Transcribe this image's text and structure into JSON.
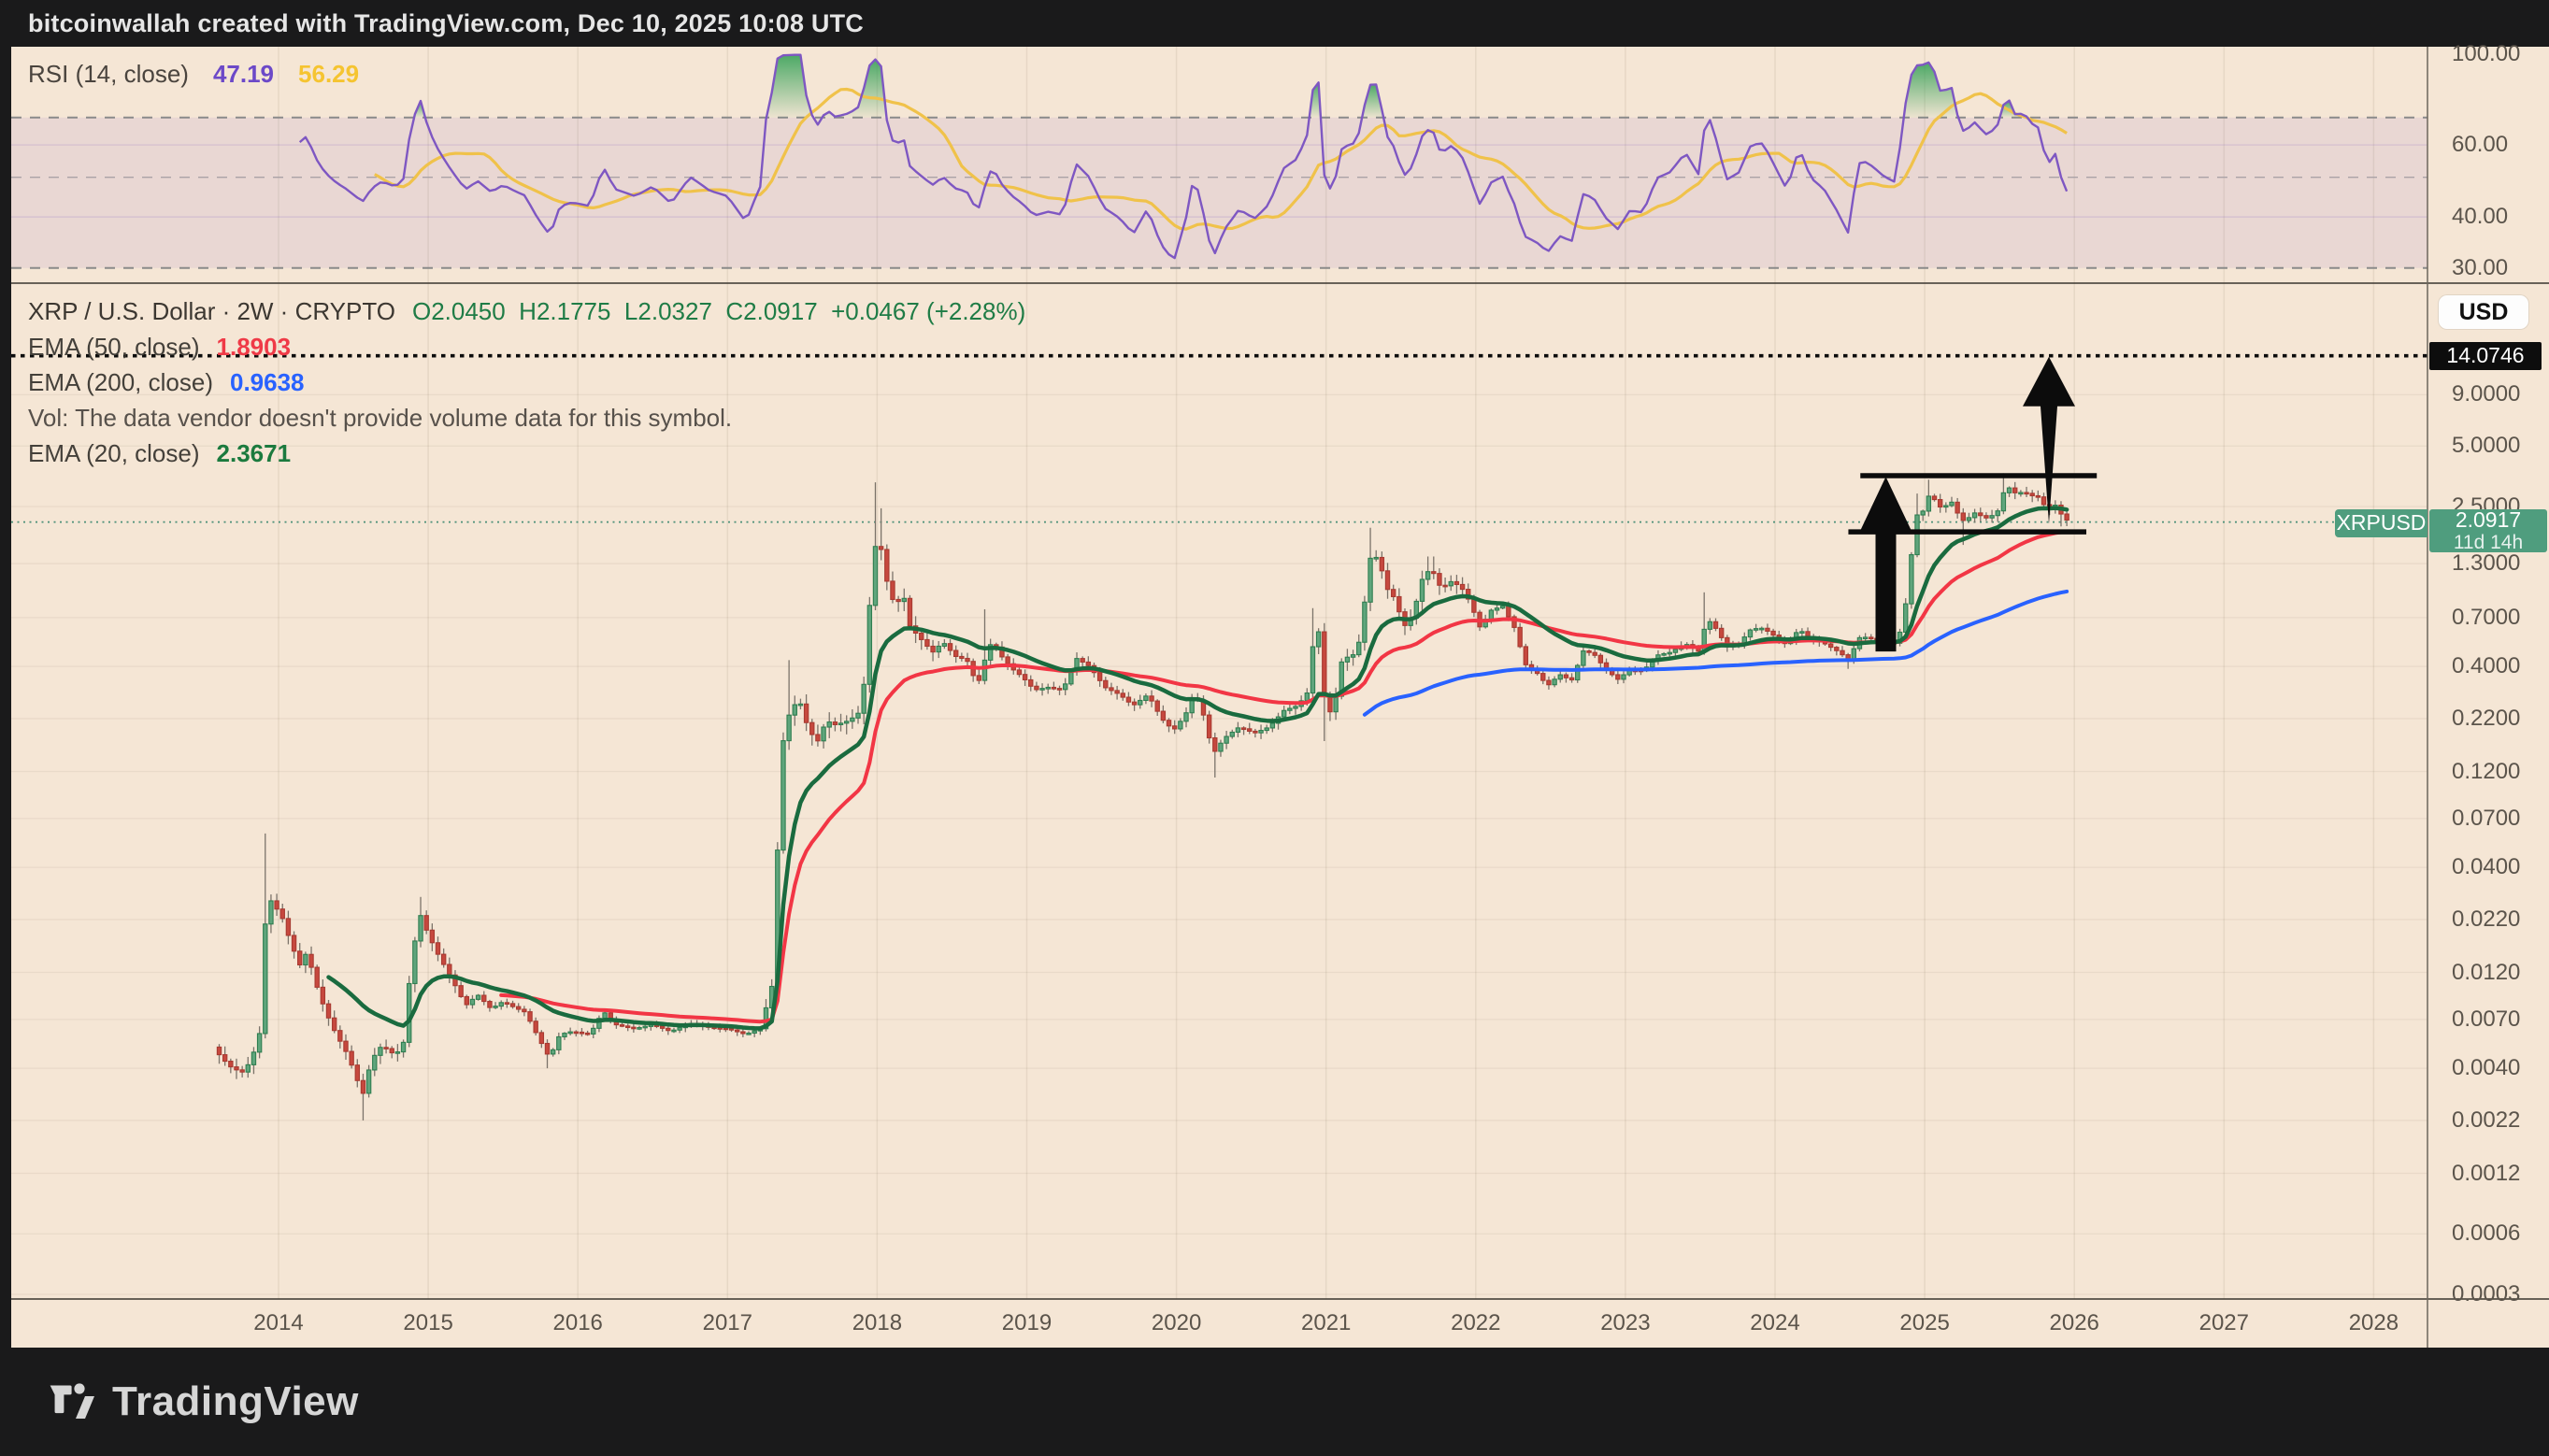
{
  "title_bar": {
    "text": "bitcoinwallah created with TradingView.com, Dec 10, 2025 10:08 UTC"
  },
  "rsi_panel": {
    "legend": {
      "label": "RSI (14, close)",
      "value": "47.19",
      "ma_value": "56.29"
    },
    "axis_labels": [
      {
        "v": 100,
        "t": "100.00"
      },
      {
        "v": 60,
        "t": "60.00"
      },
      {
        "v": 40,
        "t": "40.00"
      },
      {
        "v": 30,
        "t": "30.00"
      }
    ],
    "bands": {
      "upper": 70,
      "middle": 50,
      "lower": 30
    }
  },
  "main_panel": {
    "legend": {
      "symbol_text": "XRP / U.S. Dollar · 2W · CRYPTO",
      "ohlc_text": "O2.0450  H2.1775  L2.0327  C2.0917  +0.0467 (+2.28%)",
      "ema50_label": "EMA (50, close)",
      "ema50_value": "1.8903",
      "ema200_label": "EMA (200, close)",
      "ema200_value": "0.9638",
      "vol_text": "Vol: The data vendor doesn't provide volume data for this symbol.",
      "ema20_label": "EMA (20, close)",
      "ema20_value": "2.3671"
    }
  },
  "price_axis": {
    "currency": "USD",
    "level_badge": "14.0746",
    "price_badge": {
      "price": "2.0917",
      "countdown": "11d 14h"
    },
    "ticker_badge": "XRPUSD",
    "labels": [
      {
        "v": 9.0,
        "t": "9.0000"
      },
      {
        "v": 5.0,
        "t": "5.0000"
      },
      {
        "v": 2.5,
        "t": "2.5000"
      },
      {
        "v": 1.3,
        "t": "1.3000"
      },
      {
        "v": 0.7,
        "t": "0.7000"
      },
      {
        "v": 0.4,
        "t": "0.4000"
      },
      {
        "v": 0.22,
        "t": "0.2200"
      },
      {
        "v": 0.12,
        "t": "0.1200"
      },
      {
        "v": 0.07,
        "t": "0.0700"
      },
      {
        "v": 0.04,
        "t": "0.0400"
      },
      {
        "v": 0.022,
        "t": "0.0220"
      },
      {
        "v": 0.012,
        "t": "0.0120"
      },
      {
        "v": 0.007,
        "t": "0.0070"
      },
      {
        "v": 0.004,
        "t": "0.0040"
      },
      {
        "v": 0.0022,
        "t": "0.0022"
      },
      {
        "v": 0.0012,
        "t": "0.0012"
      },
      {
        "v": 0.0006,
        "t": "0.0006"
      },
      {
        "v": 0.0003,
        "t": "0.0003"
      }
    ]
  },
  "time_axis": {
    "years": [
      2014,
      2015,
      2016,
      2017,
      2018,
      2019,
      2020,
      2021,
      2022,
      2023,
      2024,
      2025,
      2026,
      2027,
      2028
    ]
  },
  "footer": {
    "logo_text": "TradingView"
  },
  "colors": {
    "bg_dark": "#1a1a1b",
    "panel_cream": "#f5e6d5",
    "candle_up_fill": "#5fa57c",
    "candle_up_border": "#2f7e50",
    "candle_down_fill": "#c6483e",
    "candle_down_border": "#a83a31",
    "wick": "#7b736a",
    "ema20": "#1a6b3f",
    "ema50": "#f23645",
    "ema200": "#2962ff",
    "rsi_line": "#7e57c2",
    "rsi_ma_line": "#f0c24a",
    "rsi_band_fill": "rgba(126,87,194,0.10)",
    "rsi_overbought_fill": "#2e9e52",
    "dashed_level": "#8a8a8a",
    "price_line_green": "#4a8f77",
    "badge_green": "#4f9d7e",
    "drawing_black": "#0c0c0c",
    "axis_text": "#5b544b"
  },
  "chart_data": {
    "type": "candlestick",
    "title": "XRP / U.S. Dollar 2W CRYPTO with EMA(20/50/200) and RSI(14)",
    "x_axis": {
      "label": "year",
      "range": [
        2013.3,
        2028.8
      ],
      "tick_years": [
        2014,
        2015,
        2016,
        2017,
        2018,
        2019,
        2020,
        2021,
        2022,
        2023,
        2024,
        2025,
        2026,
        2027,
        2028
      ]
    },
    "y_axis": {
      "scale": "log",
      "unit": "USD",
      "range": [
        0.0003,
        16
      ]
    },
    "current_price": 2.0917,
    "level_line_price": 14.0746,
    "ohlc_last": {
      "open": 2.045,
      "high": 2.1775,
      "low": 2.0327,
      "close": 2.0917,
      "change": 0.0467,
      "change_pct": 2.28
    },
    "t_start": 2013.565,
    "t_end": 2025.962,
    "bars_per_year": 26,
    "price_path": [
      [
        2013.565,
        0.0051
      ],
      [
        2013.62,
        0.0045
      ],
      [
        2013.69,
        0.004
      ],
      [
        2013.77,
        0.0038
      ],
      [
        2013.83,
        0.0047
      ],
      [
        2013.88,
        0.0062
      ],
      [
        2013.92,
        0.0295
      ],
      [
        2013.96,
        0.0265
      ],
      [
        2014.02,
        0.023
      ],
      [
        2014.08,
        0.017
      ],
      [
        2014.14,
        0.013
      ],
      [
        2014.19,
        0.0152
      ],
      [
        2014.25,
        0.0105
      ],
      [
        2014.31,
        0.0078
      ],
      [
        2014.38,
        0.006
      ],
      [
        2014.46,
        0.0047
      ],
      [
        2014.52,
        0.0036
      ],
      [
        2014.56,
        0.0029
      ],
      [
        2014.62,
        0.0044
      ],
      [
        2014.69,
        0.0052
      ],
      [
        2014.77,
        0.0047
      ],
      [
        2014.83,
        0.005
      ],
      [
        2014.88,
        0.012
      ],
      [
        2014.94,
        0.024
      ],
      [
        2015.0,
        0.0185
      ],
      [
        2015.06,
        0.015
      ],
      [
        2015.12,
        0.0125
      ],
      [
        2015.19,
        0.01
      ],
      [
        2015.25,
        0.0082
      ],
      [
        2015.33,
        0.0093
      ],
      [
        2015.42,
        0.0079
      ],
      [
        2015.5,
        0.0086
      ],
      [
        2015.58,
        0.008
      ],
      [
        2015.65,
        0.0076
      ],
      [
        2015.73,
        0.0058
      ],
      [
        2015.81,
        0.0045
      ],
      [
        2015.88,
        0.0059
      ],
      [
        2015.96,
        0.0061
      ],
      [
        2016.08,
        0.0059
      ],
      [
        2016.17,
        0.0077
      ],
      [
        2016.25,
        0.0066
      ],
      [
        2016.38,
        0.0063
      ],
      [
        2016.5,
        0.0066
      ],
      [
        2016.62,
        0.0061
      ],
      [
        2016.75,
        0.0067
      ],
      [
        2016.88,
        0.0064
      ],
      [
        2017.0,
        0.0063
      ],
      [
        2017.12,
        0.0059
      ],
      [
        2017.22,
        0.0063
      ],
      [
        2017.3,
        0.0105
      ],
      [
        2017.36,
        0.155
      ],
      [
        2017.42,
        0.245
      ],
      [
        2017.48,
        0.272
      ],
      [
        2017.54,
        0.195
      ],
      [
        2017.6,
        0.168
      ],
      [
        2017.66,
        0.215
      ],
      [
        2017.72,
        0.205
      ],
      [
        2017.79,
        0.212
      ],
      [
        2017.85,
        0.225
      ],
      [
        2017.9,
        0.245
      ],
      [
        2017.94,
        0.68
      ],
      [
        2018.0,
        1.95
      ],
      [
        2018.04,
        1.35
      ],
      [
        2018.08,
        0.92
      ],
      [
        2018.13,
        0.8
      ],
      [
        2018.17,
        0.95
      ],
      [
        2018.22,
        0.63
      ],
      [
        2018.29,
        0.55
      ],
      [
        2018.37,
        0.47
      ],
      [
        2018.44,
        0.53
      ],
      [
        2018.52,
        0.45
      ],
      [
        2018.6,
        0.43
      ],
      [
        2018.67,
        0.32
      ],
      [
        2018.73,
        0.46
      ],
      [
        2018.77,
        0.54
      ],
      [
        2018.83,
        0.45
      ],
      [
        2018.9,
        0.39
      ],
      [
        2018.97,
        0.355
      ],
      [
        2019.05,
        0.305
      ],
      [
        2019.14,
        0.315
      ],
      [
        2019.24,
        0.305
      ],
      [
        2019.33,
        0.44
      ],
      [
        2019.42,
        0.4
      ],
      [
        2019.52,
        0.315
      ],
      [
        2019.62,
        0.29
      ],
      [
        2019.71,
        0.255
      ],
      [
        2019.81,
        0.29
      ],
      [
        2019.9,
        0.22
      ],
      [
        2019.98,
        0.192
      ],
      [
        2020.06,
        0.23
      ],
      [
        2020.12,
        0.3
      ],
      [
        2020.2,
        0.21
      ],
      [
        2020.24,
        0.145
      ],
      [
        2020.32,
        0.176
      ],
      [
        2020.42,
        0.2
      ],
      [
        2020.52,
        0.186
      ],
      [
        2020.62,
        0.2
      ],
      [
        2020.72,
        0.242
      ],
      [
        2020.81,
        0.255
      ],
      [
        2020.88,
        0.3
      ],
      [
        2020.92,
        0.58
      ],
      [
        2020.96,
        0.6
      ],
      [
        2021.0,
        0.215
      ],
      [
        2021.06,
        0.27
      ],
      [
        2021.11,
        0.45
      ],
      [
        2021.17,
        0.44
      ],
      [
        2021.23,
        0.55
      ],
      [
        2021.29,
        1.38
      ],
      [
        2021.35,
        1.4
      ],
      [
        2021.4,
        0.99
      ],
      [
        2021.46,
        0.87
      ],
      [
        2021.52,
        0.63
      ],
      [
        2021.58,
        0.72
      ],
      [
        2021.64,
        1.08
      ],
      [
        2021.7,
        1.24
      ],
      [
        2021.77,
        0.97
      ],
      [
        2021.83,
        1.06
      ],
      [
        2021.9,
        1.0
      ],
      [
        2021.96,
        0.84
      ],
      [
        2022.03,
        0.62
      ],
      [
        2022.1,
        0.76
      ],
      [
        2022.18,
        0.8
      ],
      [
        2022.26,
        0.62
      ],
      [
        2022.33,
        0.41
      ],
      [
        2022.41,
        0.37
      ],
      [
        2022.48,
        0.32
      ],
      [
        2022.56,
        0.365
      ],
      [
        2022.64,
        0.34
      ],
      [
        2022.72,
        0.48
      ],
      [
        2022.79,
        0.46
      ],
      [
        2022.87,
        0.385
      ],
      [
        2022.95,
        0.345
      ],
      [
        2023.03,
        0.385
      ],
      [
        2023.12,
        0.38
      ],
      [
        2023.21,
        0.455
      ],
      [
        2023.3,
        0.47
      ],
      [
        2023.4,
        0.52
      ],
      [
        2023.5,
        0.47
      ],
      [
        2023.54,
        0.7
      ],
      [
        2023.6,
        0.625
      ],
      [
        2023.68,
        0.5
      ],
      [
        2023.76,
        0.52
      ],
      [
        2023.84,
        0.615
      ],
      [
        2023.92,
        0.62
      ],
      [
        2024.0,
        0.565
      ],
      [
        2024.08,
        0.51
      ],
      [
        2024.16,
        0.615
      ],
      [
        2024.24,
        0.545
      ],
      [
        2024.33,
        0.52
      ],
      [
        2024.41,
        0.48
      ],
      [
        2024.49,
        0.435
      ],
      [
        2024.57,
        0.565
      ],
      [
        2024.65,
        0.55
      ],
      [
        2024.73,
        0.53
      ],
      [
        2024.81,
        0.52
      ],
      [
        2024.86,
        0.68
      ],
      [
        2024.91,
        1.42
      ],
      [
        2024.95,
        2.28
      ],
      [
        2025.0,
        2.4
      ],
      [
        2025.04,
        3.05
      ],
      [
        2025.08,
        2.52
      ],
      [
        2025.13,
        2.45
      ],
      [
        2025.17,
        2.72
      ],
      [
        2025.21,
        2.38
      ],
      [
        2025.25,
        2.12
      ],
      [
        2025.29,
        2.18
      ],
      [
        2025.33,
        2.33
      ],
      [
        2025.38,
        2.24
      ],
      [
        2025.42,
        2.18
      ],
      [
        2025.46,
        2.28
      ],
      [
        2025.5,
        2.42
      ],
      [
        2025.54,
        3.22
      ],
      [
        2025.58,
        3.02
      ],
      [
        2025.62,
        2.86
      ],
      [
        2025.66,
        3.0
      ],
      [
        2025.7,
        2.82
      ],
      [
        2025.75,
        2.84
      ],
      [
        2025.79,
        2.58
      ],
      [
        2025.83,
        2.42
      ],
      [
        2025.87,
        2.56
      ],
      [
        2025.9,
        2.34
      ],
      [
        2025.94,
        2.18
      ],
      [
        2025.962,
        2.09
      ]
    ],
    "wick_events": [
      {
        "t": 2013.92,
        "high": 0.059
      },
      {
        "t": 2014.56,
        "low": 0.0022
      },
      {
        "t": 2014.94,
        "high": 0.0285
      },
      {
        "t": 2015.81,
        "low": 0.004
      },
      {
        "t": 2017.4,
        "high": 0.43
      },
      {
        "t": 2018.0,
        "high": 3.3
      },
      {
        "t": 2018.04,
        "high": 2.45
      },
      {
        "t": 2018.73,
        "high": 0.77
      },
      {
        "t": 2019.33,
        "high": 0.47
      },
      {
        "t": 2020.24,
        "low": 0.112
      },
      {
        "t": 2020.92,
        "high": 0.78
      },
      {
        "t": 2021.0,
        "low": 0.17
      },
      {
        "t": 2021.29,
        "high": 1.96
      },
      {
        "t": 2021.7,
        "high": 1.41
      },
      {
        "t": 2023.54,
        "high": 0.935
      },
      {
        "t": 2024.49,
        "low": 0.389
      },
      {
        "t": 2024.95,
        "high": 2.9
      },
      {
        "t": 2025.04,
        "high": 3.4
      },
      {
        "t": 2025.27,
        "low": 1.61
      },
      {
        "t": 2025.54,
        "high": 3.66
      },
      {
        "t": 2025.92,
        "low": 1.99
      }
    ],
    "volatility_eras": [
      [
        2013.5,
        2014.15,
        0.1
      ],
      [
        2014.15,
        2015.2,
        0.095
      ],
      [
        2015.2,
        2017.25,
        0.05
      ],
      [
        2017.25,
        2018.4,
        0.12
      ],
      [
        2018.4,
        2020.85,
        0.07
      ],
      [
        2020.85,
        2021.95,
        0.105
      ],
      [
        2021.95,
        2024.82,
        0.055
      ],
      [
        2024.82,
        2026.0,
        0.07
      ]
    ],
    "emas": [
      {
        "period": 20,
        "value": 2.3671,
        "color_key": "ema20"
      },
      {
        "period": 50,
        "value": 1.8903,
        "color_key": "ema50"
      },
      {
        "period": 200,
        "value": 0.9638,
        "color_key": "ema200"
      }
    ],
    "rsi": {
      "period": 14,
      "value": 47.19,
      "ma_period": 14,
      "ma_value": 56.29,
      "overbought": 70,
      "oversold": 30
    },
    "drawings": {
      "level_line": {
        "price": 14.0746,
        "style": "dotted"
      },
      "current_price_line": {
        "price": 2.0917,
        "style": "dotted"
      },
      "flag_top_line": {
        "t1": 2024.57,
        "t2": 2026.15,
        "price": 3.56
      },
      "flag_bottom_line": {
        "t1": 2024.49,
        "t2": 2026.08,
        "price": 1.87
      },
      "arrow_1": {
        "t": 2024.74,
        "from_price": 0.475,
        "to_price": 3.52
      },
      "arrow_2": {
        "t": 2025.83,
        "from_price": 2.05,
        "to_price": 13.9
      }
    }
  }
}
